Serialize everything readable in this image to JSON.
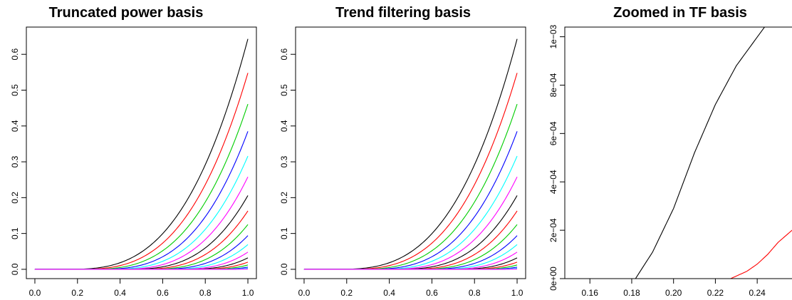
{
  "chart_data": [
    {
      "type": "line",
      "title": "Truncated power basis",
      "xlabel": "",
      "ylabel": "",
      "xlim": [
        0.0,
        1.0
      ],
      "ylim": [
        0.0,
        0.65
      ],
      "xticks": [
        "0.0",
        "0.2",
        "0.4",
        "0.6",
        "0.8",
        "1.0"
      ],
      "yticks": [
        "0.0",
        "0.1",
        "0.2",
        "0.3",
        "0.4",
        "0.5",
        "0.6"
      ],
      "model": "truncated cubic (x - knot)^3 / 3! scaled to endpoint values",
      "series": [
        {
          "color": "#000000",
          "knot": 0.136,
          "values_at_x1": 0.643
        },
        {
          "color": "#ff0000",
          "knot": 0.182,
          "values_at_x1": 0.548
        },
        {
          "color": "#00cd00",
          "knot": 0.227,
          "values_at_x1": 0.461
        },
        {
          "color": "#0000ff",
          "knot": 0.273,
          "values_at_x1": 0.385
        },
        {
          "color": "#00ffff",
          "knot": 0.318,
          "values_at_x1": 0.316
        },
        {
          "color": "#ff00ff",
          "knot": 0.364,
          "values_at_x1": 0.258
        },
        {
          "color": "#000000",
          "knot": 0.409,
          "values_at_x1": 0.206
        },
        {
          "color": "#ff0000",
          "knot": 0.455,
          "values_at_x1": 0.163
        },
        {
          "color": "#00cd00",
          "knot": 0.5,
          "values_at_x1": 0.125
        },
        {
          "color": "#0000ff",
          "knot": 0.545,
          "values_at_x1": 0.094
        },
        {
          "color": "#00ffff",
          "knot": 0.591,
          "values_at_x1": 0.069
        },
        {
          "color": "#ff00ff",
          "knot": 0.636,
          "values_at_x1": 0.048
        },
        {
          "color": "#000000",
          "knot": 0.682,
          "values_at_x1": 0.032
        },
        {
          "color": "#ff0000",
          "knot": 0.727,
          "values_at_x1": 0.02
        },
        {
          "color": "#00cd00",
          "knot": 0.773,
          "values_at_x1": 0.012
        },
        {
          "color": "#0000ff",
          "knot": 0.818,
          "values_at_x1": 0.006
        },
        {
          "color": "#00ffff",
          "knot": 0.864,
          "values_at_x1": 0.003
        },
        {
          "color": "#ff00ff",
          "knot": 0.909,
          "values_at_x1": 0.001
        }
      ]
    },
    {
      "type": "line",
      "title": "Trend filtering basis",
      "xlabel": "",
      "ylabel": "",
      "xlim": [
        0.0,
        1.0
      ],
      "ylim": [
        0.0,
        0.65
      ],
      "xticks": [
        "0.0",
        "0.2",
        "0.4",
        "0.6",
        "0.8",
        "1.0"
      ],
      "yticks": [
        "0.0",
        "0.1",
        "0.2",
        "0.3",
        "0.4",
        "0.5",
        "0.6"
      ],
      "model": "same basis family, discrete falling-factorial version",
      "series": [
        {
          "color": "#000000",
          "knot": 0.136,
          "values_at_x1": 0.643
        },
        {
          "color": "#ff0000",
          "knot": 0.182,
          "values_at_x1": 0.548
        },
        {
          "color": "#00cd00",
          "knot": 0.227,
          "values_at_x1": 0.461
        },
        {
          "color": "#0000ff",
          "knot": 0.273,
          "values_at_x1": 0.385
        },
        {
          "color": "#00ffff",
          "knot": 0.318,
          "values_at_x1": 0.316
        },
        {
          "color": "#ff00ff",
          "knot": 0.364,
          "values_at_x1": 0.258
        },
        {
          "color": "#000000",
          "knot": 0.409,
          "values_at_x1": 0.206
        },
        {
          "color": "#ff0000",
          "knot": 0.455,
          "values_at_x1": 0.163
        },
        {
          "color": "#00cd00",
          "knot": 0.5,
          "values_at_x1": 0.125
        },
        {
          "color": "#0000ff",
          "knot": 0.545,
          "values_at_x1": 0.094
        },
        {
          "color": "#00ffff",
          "knot": 0.591,
          "values_at_x1": 0.069
        },
        {
          "color": "#ff00ff",
          "knot": 0.636,
          "values_at_x1": 0.048
        },
        {
          "color": "#000000",
          "knot": 0.682,
          "values_at_x1": 0.032
        },
        {
          "color": "#ff0000",
          "knot": 0.727,
          "values_at_x1": 0.02
        },
        {
          "color": "#00cd00",
          "knot": 0.773,
          "values_at_x1": 0.012
        },
        {
          "color": "#0000ff",
          "knot": 0.818,
          "values_at_x1": 0.006
        },
        {
          "color": "#00ffff",
          "knot": 0.864,
          "values_at_x1": 0.003
        },
        {
          "color": "#ff00ff",
          "knot": 0.909,
          "values_at_x1": 0.001
        }
      ]
    },
    {
      "type": "line",
      "title": "Zoomed in TF basis",
      "xlabel": "",
      "ylabel": "",
      "xlim": [
        0.148,
        0.258
      ],
      "ylim": [
        0.0,
        0.00104
      ],
      "xticks": [
        "0.16",
        "0.18",
        "0.20",
        "0.22",
        "0.24"
      ],
      "yticks": [
        "0e+00",
        "2e−04",
        "4e−04",
        "6e−04",
        "8e−04",
        "1e−03"
      ],
      "series": [
        {
          "color": "#000000",
          "knot": 0.1818,
          "points": [
            [
              0.148,
              0.0
            ],
            [
              0.1818,
              0.0
            ],
            [
              0.19,
              0.00011
            ],
            [
              0.2,
              0.00029
            ],
            [
              0.21,
              0.00052
            ],
            [
              0.22,
              0.00072
            ],
            [
              0.23,
              0.00088
            ],
            [
              0.2435,
              0.00104
            ]
          ]
        },
        {
          "color": "#ff0000",
          "knot": 0.2273,
          "points": [
            [
              0.148,
              0.0
            ],
            [
              0.2273,
              0.0
            ],
            [
              0.235,
              3e-05
            ],
            [
              0.24,
              6e-05
            ],
            [
              0.245,
              0.0001
            ],
            [
              0.25,
              0.00015
            ],
            [
              0.258,
              0.00021
            ]
          ]
        },
        {
          "color": "#00cd00",
          "knot": 0.2727,
          "points": [
            [
              0.148,
              0.0
            ],
            [
              0.258,
              0.0
            ]
          ]
        },
        {
          "color": "#0000ff",
          "knot": 0.3182,
          "points": [
            [
              0.148,
              0.0
            ],
            [
              0.258,
              0.0
            ]
          ]
        },
        {
          "color": "#00ffff",
          "knot": 0.3636,
          "points": [
            [
              0.148,
              0.0
            ],
            [
              0.258,
              0.0
            ]
          ]
        },
        {
          "color": "#008b8b",
          "knot": 0.4091,
          "points": [
            [
              0.148,
              0.0
            ],
            [
              0.258,
              0.0
            ]
          ]
        }
      ]
    }
  ]
}
